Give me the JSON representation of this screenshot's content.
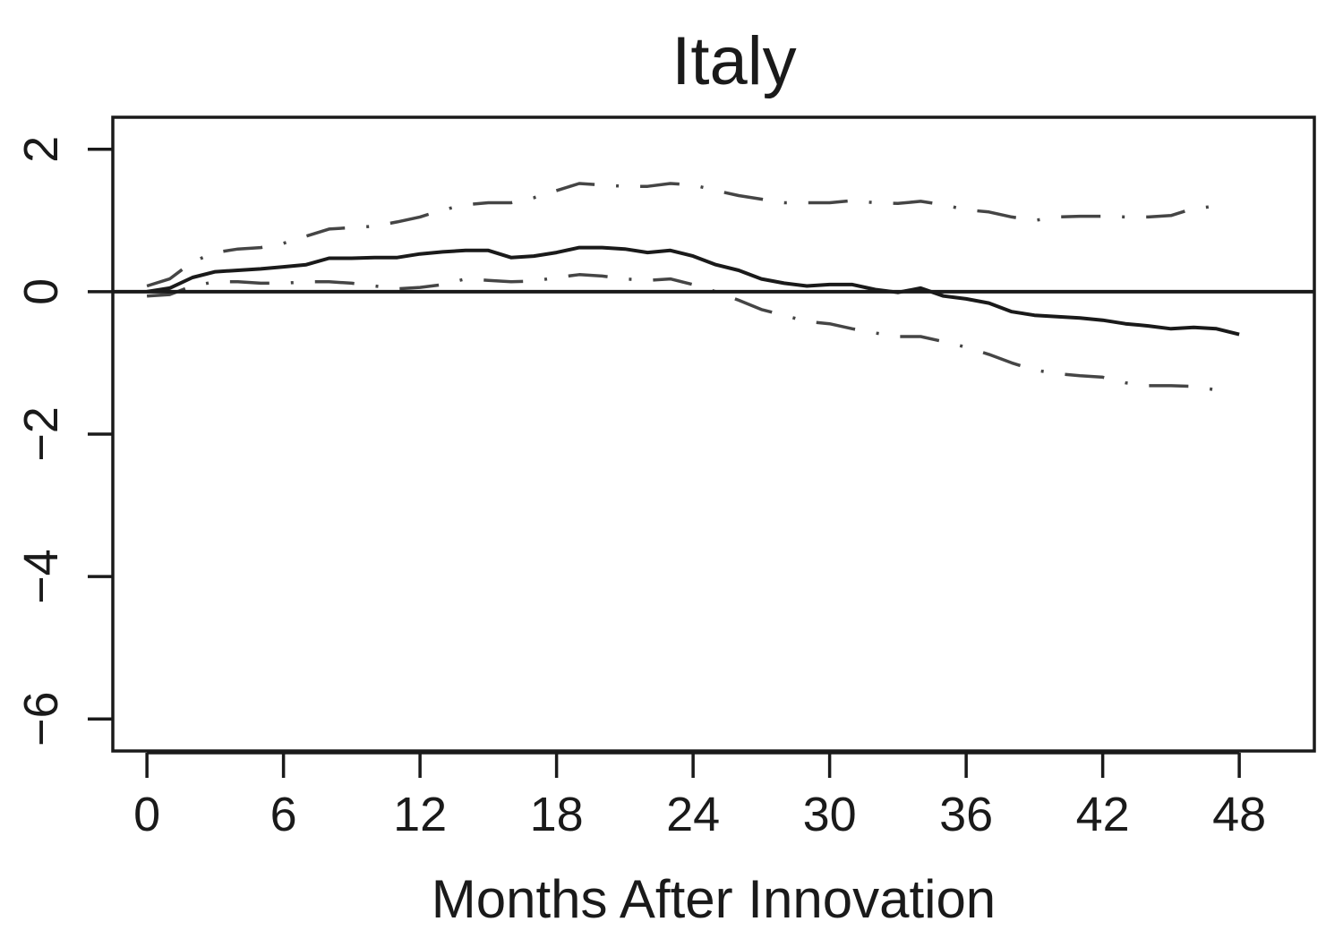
{
  "chart_data": {
    "type": "line",
    "title": "Italy",
    "xlabel": "Months After Innovation",
    "ylabel": "",
    "xlim": [
      -1.5,
      51.3
    ],
    "ylim": [
      -6.45,
      2.45
    ],
    "x_ticks": [
      0,
      6,
      12,
      18,
      24,
      30,
      36,
      42,
      48
    ],
    "y_ticks": [
      2,
      0,
      -2,
      -4,
      -6
    ],
    "x_tick_labels": [
      "0",
      "6",
      "12",
      "18",
      "24",
      "30",
      "36",
      "42",
      "48"
    ],
    "y_tick_labels": [
      "2",
      "0",
      "−2",
      "−4",
      "−6"
    ],
    "reference_line_y": 0,
    "grid": false,
    "series": [
      {
        "role": "estimate",
        "style": "solid",
        "x": [
          0,
          1,
          2,
          3,
          4,
          5,
          6,
          7,
          8,
          9,
          10,
          11,
          12,
          13,
          14,
          15,
          16,
          17,
          18,
          19,
          20,
          21,
          22,
          23,
          24,
          25,
          26,
          27,
          28,
          29,
          30,
          31,
          32,
          33,
          34,
          35,
          36,
          37,
          38,
          39,
          40,
          41,
          42,
          43,
          44,
          45,
          46,
          47,
          48
        ],
        "y": [
          0.0,
          0.05,
          0.2,
          0.28,
          0.3,
          0.32,
          0.35,
          0.38,
          0.47,
          0.47,
          0.48,
          0.48,
          0.53,
          0.56,
          0.58,
          0.58,
          0.48,
          0.5,
          0.55,
          0.62,
          0.62,
          0.6,
          0.55,
          0.58,
          0.5,
          0.38,
          0.3,
          0.18,
          0.12,
          0.08,
          0.1,
          0.1,
          0.03,
          -0.01,
          0.05,
          -0.06,
          -0.1,
          -0.16,
          -0.28,
          -0.33,
          -0.35,
          -0.37,
          -0.4,
          -0.45,
          -0.48,
          -0.52,
          -0.5,
          -0.52,
          -0.6
        ]
      },
      {
        "role": "upper-band",
        "style": "dash-dot",
        "x": [
          0,
          1,
          2,
          3,
          4,
          5,
          6,
          7,
          8,
          9,
          10,
          11,
          12,
          13,
          14,
          15,
          16,
          17,
          18,
          19,
          20,
          21,
          22,
          23,
          24,
          25,
          26,
          27,
          28,
          29,
          30,
          31,
          32,
          33,
          34,
          35,
          36,
          37,
          38,
          39,
          40,
          41,
          42,
          43,
          44,
          45,
          46,
          47
        ],
        "y": [
          0.08,
          0.18,
          0.42,
          0.55,
          0.6,
          0.62,
          0.68,
          0.78,
          0.88,
          0.9,
          0.92,
          0.98,
          1.05,
          1.15,
          1.22,
          1.25,
          1.25,
          1.32,
          1.42,
          1.52,
          1.5,
          1.48,
          1.48,
          1.52,
          1.5,
          1.42,
          1.35,
          1.3,
          1.25,
          1.25,
          1.25,
          1.28,
          1.25,
          1.24,
          1.27,
          1.22,
          1.15,
          1.12,
          1.05,
          1.0,
          1.05,
          1.06,
          1.06,
          1.05,
          1.05,
          1.07,
          1.17,
          1.2
        ]
      },
      {
        "role": "lower-band",
        "style": "dash-dot",
        "x": [
          0,
          1,
          2,
          3,
          4,
          5,
          6,
          7,
          8,
          9,
          10,
          11,
          12,
          13,
          14,
          15,
          16,
          17,
          18,
          19,
          20,
          21,
          22,
          23,
          24,
          25,
          26,
          27,
          28,
          29,
          30,
          31,
          32,
          33,
          34,
          35,
          36,
          37,
          38,
          39,
          40,
          41,
          42,
          43,
          44,
          45,
          46,
          47
        ],
        "y": [
          -0.06,
          -0.04,
          0.08,
          0.14,
          0.14,
          0.12,
          0.12,
          0.14,
          0.14,
          0.12,
          0.08,
          0.04,
          0.06,
          0.1,
          0.18,
          0.16,
          0.14,
          0.15,
          0.2,
          0.24,
          0.22,
          0.18,
          0.16,
          0.18,
          0.1,
          0.0,
          -0.12,
          -0.25,
          -0.33,
          -0.42,
          -0.45,
          -0.52,
          -0.58,
          -0.63,
          -0.63,
          -0.7,
          -0.78,
          -0.88,
          -1.0,
          -1.1,
          -1.15,
          -1.18,
          -1.2,
          -1.28,
          -1.32,
          -1.32,
          -1.33,
          -1.38
        ]
      }
    ]
  }
}
